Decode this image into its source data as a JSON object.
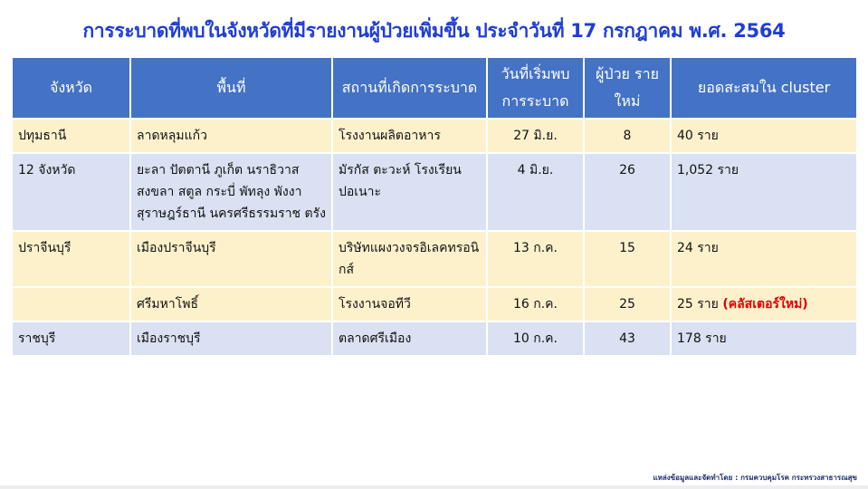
{
  "title": "การระบาดที่พบในจังหวัดที่มีรายงานผู้ป่วยเพิ่มขึ้น ประจำวันที่ 17 กรกฎาคม พ.ศ. 2564",
  "headers": [
    "จังหวัด",
    "พื้นที่",
    "สถานที่เกิดการระบาด",
    "วันที่เริ่มพบ การระบาด",
    "ผู้ป่วย รายใหม่",
    "ยอดสะสมใน cluster"
  ],
  "rows": [
    {
      "province": "ปทุมธานี",
      "area": "ลาดหลุมแก้ว",
      "place": "โรงงานผลิตอาหาร",
      "date": "27 มิ.ย.",
      "new": "8",
      "total": "40 ราย",
      "note": ""
    },
    {
      "province": "12 จังหวัด",
      "area": "ยะลา ปัตตานี ภูเก็ต นราธิวาส สงขลา สตูล กระบี่ พัทลุง พังงา สุราษฎร์ธานี นครศรีธรรมราช ตรัง",
      "place": "มัรกัส ตะวะห์ โรงเรียนปอเนาะ",
      "date": "4 มิ.ย.",
      "new": "26",
      "total": "1,052 ราย",
      "note": ""
    },
    {
      "province": "ปราจีนบุรี",
      "area": "เมืองปราจีนบุรี",
      "place": "บริษัทแผงวงจรอิเลคทรอนิกส์",
      "date": "13 ก.ค.",
      "new": "15",
      "total": "24 ราย",
      "note": ""
    },
    {
      "province": "",
      "area": "ศรีมหาโพธิ์",
      "place": "โรงงานจอทีวี",
      "date": "16 ก.ค.",
      "new": "25",
      "total": "25 ราย",
      "note": "(คลัสเตอร์ใหม่)"
    },
    {
      "province": "ราชบุรี",
      "area": "เมืองราชบุรี",
      "place": "ตลาดศรีเมือง",
      "date": "10 ก.ค.",
      "new": "43",
      "total": "178 ราย",
      "note": ""
    }
  ],
  "footer": "แหล่งข้อมูลและจัดทำโดย : กรมควบคุมโรค กระทรวงสาธารณสุข",
  "colors": {
    "title": "#1f3dd6",
    "header": "#4472c4",
    "row_yellow": "#fdf1cc",
    "row_blue": "#d9e1f2",
    "note": "#e00000"
  }
}
